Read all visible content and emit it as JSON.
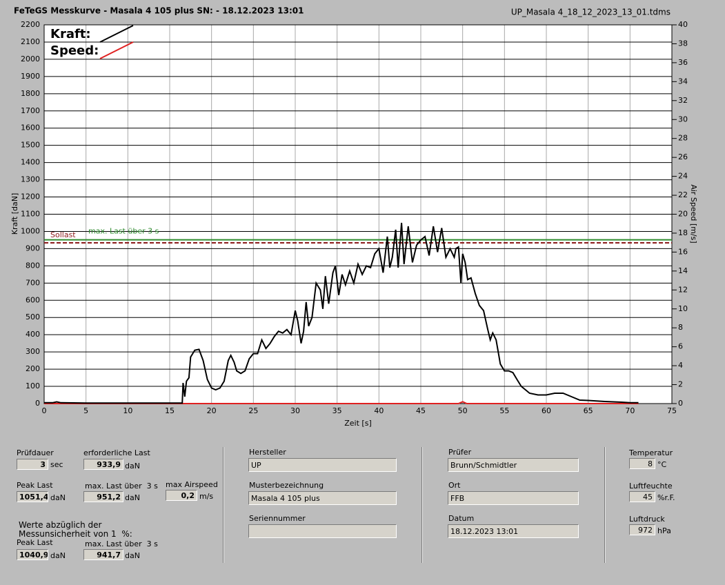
{
  "header": {
    "title": "FeTeGS Messkurve - Masala 4 105 plus  SN:  - 18.12.2023 13:01",
    "file": "UP_Masala 4_18_12_2023_13_01.tdms"
  },
  "chart_data": {
    "type": "line",
    "xlabel": "Zeit [s]",
    "ylabel": "Kraft [daN]",
    "y2label": "Air Speed [m/s]",
    "xlim": [
      0,
      75
    ],
    "xticks": [
      0,
      5,
      10,
      15,
      20,
      25,
      30,
      35,
      40,
      45,
      50,
      55,
      60,
      65,
      70,
      75
    ],
    "ylim": [
      0,
      2200
    ],
    "yticks": [
      0,
      100,
      200,
      300,
      400,
      500,
      600,
      700,
      800,
      900,
      1000,
      1100,
      1200,
      1300,
      1400,
      1500,
      1600,
      1700,
      1800,
      1900,
      2000,
      2100,
      2200
    ],
    "y2lim": [
      0,
      40
    ],
    "y2ticks": [
      0,
      2,
      4,
      6,
      8,
      10,
      12,
      14,
      16,
      18,
      20,
      22,
      24,
      26,
      28,
      30,
      32,
      34,
      36,
      38,
      40
    ],
    "grid": true,
    "reference_lines": [
      {
        "label": "Sollast",
        "value": 933.9,
        "color": "#8b1a1a",
        "dashed": true
      },
      {
        "label": "max. Last über  3 s",
        "value": 951.2,
        "color": "#2e8b2e",
        "dashed": false
      }
    ],
    "series": [
      {
        "name": "Kraft:",
        "color": "#000000",
        "axis": "y",
        "x": [
          0,
          1,
          1.5,
          2,
          5,
          10,
          15,
          16.5,
          16.6,
          16.8,
          17,
          17.3,
          17.5,
          18,
          18.5,
          19,
          19.5,
          20,
          20.5,
          21,
          21.5,
          22,
          22.3,
          22.7,
          23,
          23.5,
          24,
          24.5,
          25,
          25.5,
          26,
          26.5,
          27,
          27.5,
          28,
          28.5,
          29,
          29.5,
          30,
          30.3,
          30.7,
          31,
          31.3,
          31.6,
          32,
          32.5,
          33,
          33.3,
          33.6,
          34,
          34.5,
          34.8,
          35.2,
          35.6,
          36,
          36.5,
          37,
          37.5,
          38,
          38.5,
          39,
          39.5,
          40,
          40.5,
          41,
          41.3,
          41.6,
          42,
          42.3,
          42.7,
          43,
          43.5,
          44,
          44.5,
          45,
          45.5,
          46,
          46.5,
          47,
          47.5,
          48,
          48.5,
          49,
          49.2,
          49.5,
          49.8,
          50,
          50.3,
          50.6,
          51,
          51.5,
          52,
          52.5,
          53,
          53.3,
          53.6,
          54,
          54.5,
          55,
          55.5,
          56,
          56.5,
          57,
          57.5,
          58,
          59,
          60,
          61,
          62,
          63,
          64,
          65,
          66,
          67,
          68,
          69,
          70,
          71
        ],
        "values": [
          5,
          5,
          10,
          5,
          3,
          3,
          3,
          3,
          120,
          40,
          130,
          150,
          270,
          310,
          315,
          250,
          140,
          90,
          80,
          90,
          130,
          250,
          280,
          240,
          190,
          175,
          190,
          260,
          290,
          290,
          370,
          320,
          350,
          390,
          420,
          410,
          430,
          400,
          540,
          480,
          350,
          420,
          590,
          450,
          500,
          700,
          660,
          550,
          740,
          580,
          760,
          800,
          630,
          750,
          690,
          770,
          700,
          810,
          750,
          800,
          790,
          870,
          900,
          760,
          970,
          790,
          850,
          1010,
          790,
          1050,
          810,
          1030,
          820,
          920,
          950,
          970,
          860,
          1030,
          880,
          1020,
          850,
          900,
          850,
          900,
          910,
          700,
          870,
          820,
          720,
          730,
          640,
          570,
          540,
          430,
          370,
          410,
          370,
          230,
          190,
          190,
          180,
          140,
          100,
          80,
          60,
          50,
          50,
          60,
          60,
          40,
          20,
          18,
          15,
          12,
          10,
          8,
          5,
          5
        ]
      },
      {
        "name": "Speed:",
        "color": "#e02020",
        "axis": "y2",
        "x": [
          0,
          49.5,
          50,
          50.5,
          71
        ],
        "values": [
          0,
          0,
          0.2,
          0,
          0
        ]
      }
    ]
  },
  "panel": {
    "pruefdauer": {
      "label": "Prüfdauer",
      "value": "3",
      "unit": "sec"
    },
    "erf_last": {
      "label": "erforderliche Last",
      "value": "933,9",
      "unit": "daN"
    },
    "peak": {
      "label": "Peak Last",
      "value": "1051,4",
      "unit": "daN"
    },
    "max_last": {
      "label": "max. Last über  3 s",
      "value": "951,2",
      "unit": "daN"
    },
    "airspeed": {
      "label": "max Airspeed",
      "value": "0,2",
      "unit": "m/s"
    },
    "note": [
      "Werte abzüglich der",
      "Messunsicherheit von 1  %:"
    ],
    "peak2": {
      "label": "Peak Last",
      "value": "1040,9",
      "unit": "daN"
    },
    "max_last2": {
      "label": "max. Last über  3 s",
      "value": "941,7",
      "unit": "daN"
    },
    "hersteller": {
      "label": "Hersteller",
      "value": "UP"
    },
    "muster": {
      "label": "Musterbezeichnung",
      "value": "Masala 4 105 plus"
    },
    "serien": {
      "label": "Seriennummer"
    },
    "pruefer": {
      "label": "Prüfer",
      "value": "Brunn/Schmidtler"
    },
    "ort": {
      "label": "Ort",
      "value": "FFB"
    },
    "datum": {
      "label": "Datum",
      "value": "18.12.2023 13:01"
    },
    "temp": {
      "label": "Temperatur",
      "value": "8",
      "unit": "°C"
    },
    "feuchte": {
      "label": "Luftfeuchte",
      "value": "45",
      "unit": "%r.F."
    },
    "druck": {
      "label": "Luftdruck",
      "value": "972",
      "unit": "hPa"
    }
  }
}
